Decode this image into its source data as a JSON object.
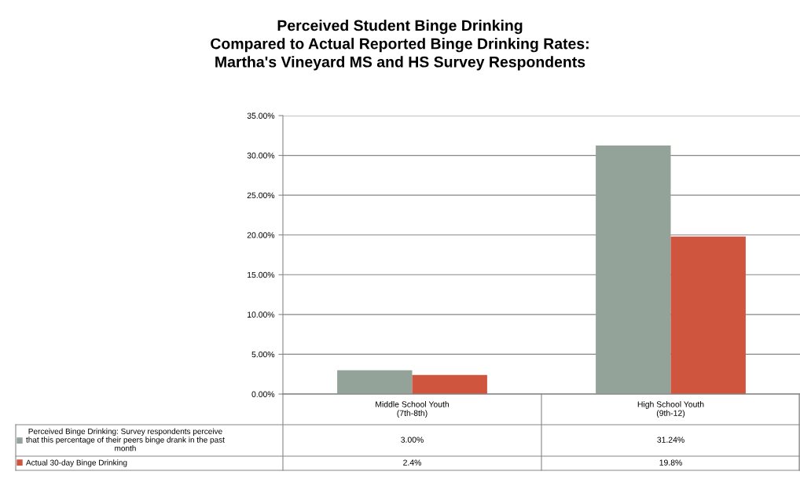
{
  "chart_data": {
    "type": "bar",
    "title": "Perceived Student Binge Drinking\nCompared to Actual Reported Binge Drinking Rates:\nMartha's Vineyard MS and HS Survey Respondents",
    "categories": [
      "Middle School Youth\n(7th-8th)",
      "High School Youth\n(9th-12)"
    ],
    "series": [
      {
        "name": "Perceived Binge Drinking: Survey respondents perceive\nthat this percentage of their peers binge drank in the past\nmonth",
        "color": "#94a39a",
        "values": [
          3.0,
          31.24
        ],
        "value_labels": [
          "3.00%",
          "31.24%"
        ]
      },
      {
        "name": "Actual 30-day Binge Drinking",
        "color": "#cf553f",
        "values": [
          2.4,
          19.8
        ],
        "value_labels": [
          "2.4%",
          "19.8%"
        ]
      }
    ],
    "ylim": [
      0,
      35
    ],
    "yticks": [
      {
        "value": 0,
        "label": "0.00%"
      },
      {
        "value": 5,
        "label": "5.00%"
      },
      {
        "value": 10,
        "label": "10.00%"
      },
      {
        "value": 15,
        "label": "15.00%"
      },
      {
        "value": 20,
        "label": "20.00%"
      },
      {
        "value": 25,
        "label": "25.00%"
      },
      {
        "value": 30,
        "label": "30.00%"
      },
      {
        "value": 35,
        "label": "35.00%"
      }
    ],
    "grid": "y",
    "legend": "bottom"
  }
}
